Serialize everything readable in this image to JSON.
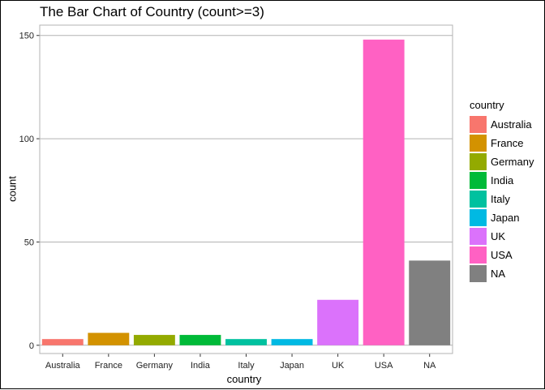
{
  "chart_data": {
    "type": "bar",
    "title": "The Bar Chart of Country (count>=3)",
    "xlabel": "country",
    "ylabel": "count",
    "categories": [
      "Australia",
      "France",
      "Germany",
      "India",
      "Italy",
      "Japan",
      "UK",
      "USA",
      "NA"
    ],
    "values": [
      3,
      6,
      5,
      5,
      3,
      3,
      22,
      148,
      41
    ],
    "colors": [
      "#F8766D",
      "#D39200",
      "#93AA00",
      "#00BA38",
      "#00C19F",
      "#00B9E3",
      "#DB72FB",
      "#FF61C3",
      "#808080"
    ],
    "ylim": [
      -4,
      155
    ],
    "yticks": [
      0,
      50,
      100,
      150
    ],
    "grid": true,
    "legend": {
      "title": "country",
      "position": "right",
      "entries": [
        "Australia",
        "France",
        "Germany",
        "India",
        "Italy",
        "Japan",
        "UK",
        "USA",
        "NA"
      ]
    }
  }
}
